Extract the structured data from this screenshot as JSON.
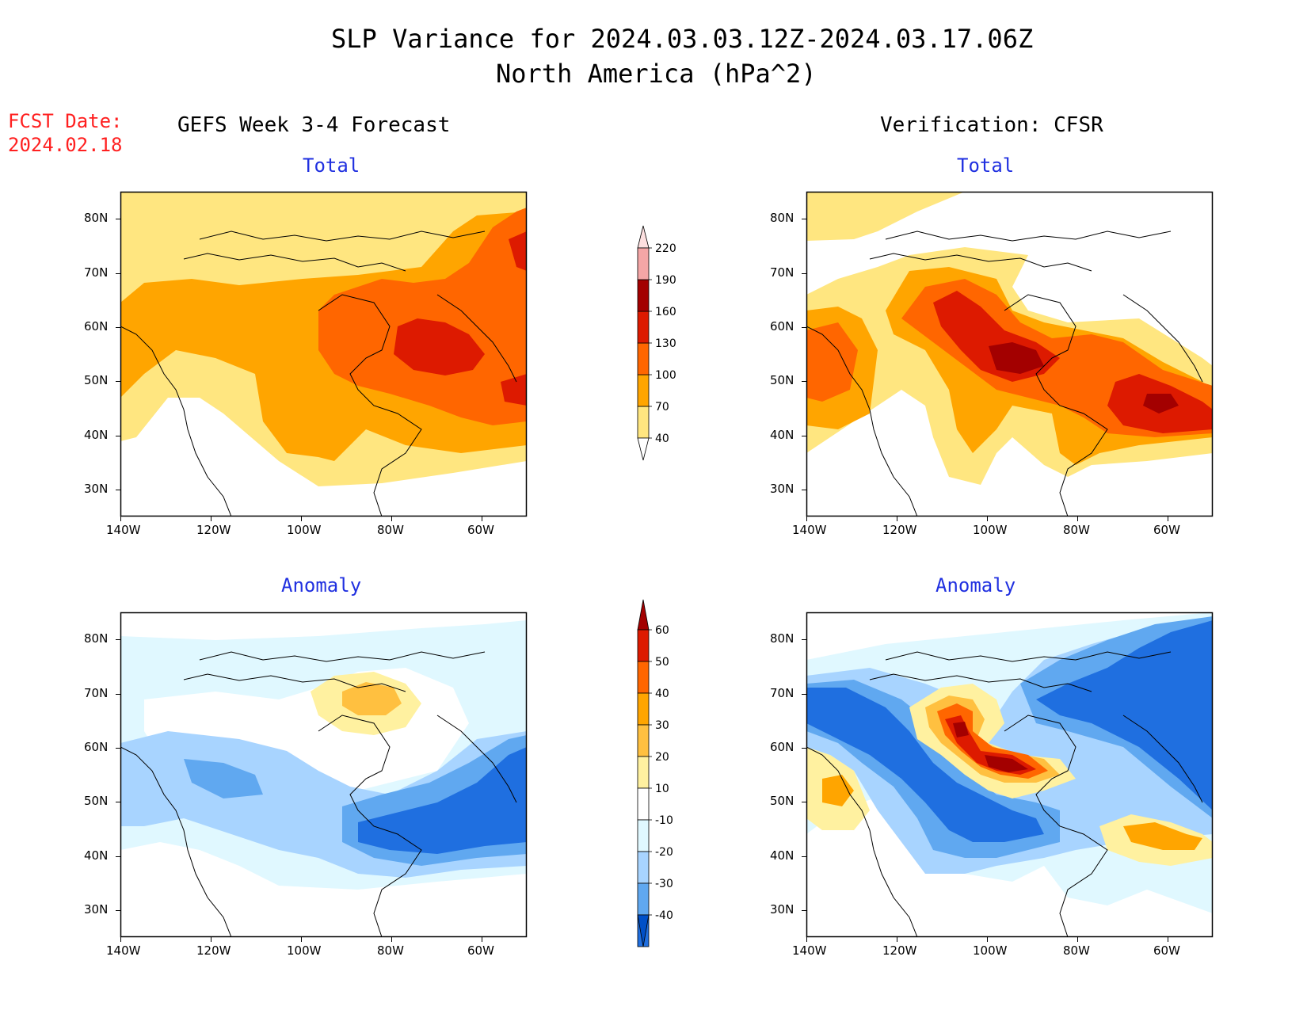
{
  "title": {
    "line1": "SLP Variance for 2024.03.03.12Z-2024.03.17.06Z",
    "line2": "North America (hPa^2)"
  },
  "fcst": {
    "label": "FCST Date:",
    "date": "2024.02.18"
  },
  "columns": {
    "left": "GEFS Week 3-4 Forecast",
    "right": "Verification: CFSR"
  },
  "panels": {
    "total": "Total",
    "anomaly": "Anomaly"
  },
  "axes": {
    "lat_ticks": [
      "80N",
      "70N",
      "60N",
      "50N",
      "40N",
      "30N"
    ],
    "lon_ticks": [
      "140W",
      "120W",
      "100W",
      "80W",
      "60W"
    ],
    "lat_values": [
      80,
      70,
      60,
      50,
      40,
      30
    ],
    "lon_values": [
      -140,
      -120,
      -100,
      -80,
      -60
    ],
    "lat_range": [
      25,
      85
    ],
    "lon_range": [
      -140,
      -50
    ]
  },
  "colorbars": {
    "total": {
      "levels": [
        "40",
        "70",
        "100",
        "130",
        "160",
        "190",
        "220"
      ],
      "colors": [
        "#ffe680",
        "#ffa500",
        "#ff6600",
        "#dd1a00",
        "#a30000",
        "#f4a6a6",
        "#fde0e0"
      ]
    },
    "anomaly": {
      "levels": [
        "60",
        "50",
        "40",
        "30",
        "20",
        "10",
        "-10",
        "-20",
        "-30",
        "-40"
      ],
      "colors": [
        "#a30000",
        "#dd1a00",
        "#ff6600",
        "#ffa500",
        "#ffc040",
        "#fff1a0",
        "#ffffff",
        "#e0f8ff",
        "#a8d4ff",
        "#60a8f0",
        "#1f6fe0",
        "#0050c8"
      ]
    }
  },
  "colors": {
    "title_red": "#ff2020",
    "panel_blue": "#2030e0"
  }
}
